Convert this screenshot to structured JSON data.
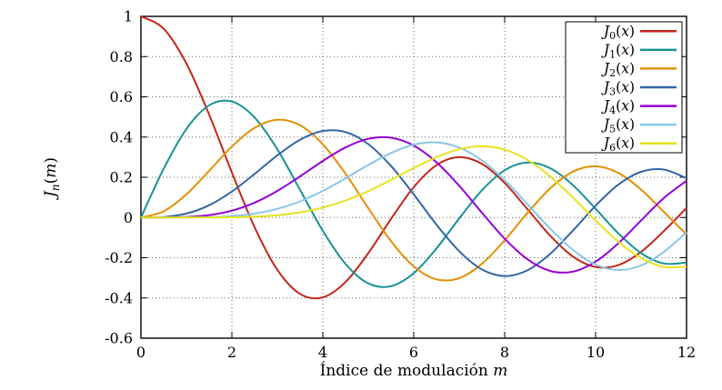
{
  "figure": {
    "background": "#ffffff",
    "grid_color": "#666666",
    "axis_color": "#000000"
  },
  "chart_data": {
    "type": "line",
    "title": "",
    "xlabel_text": "Índice de modulación",
    "xlabel_var": "m",
    "ylabel_func": "J",
    "ylabel_sub": "n",
    "ylabel_arg_open": "(",
    "ylabel_arg_var": "m",
    "ylabel_arg_close": ")",
    "xlim": [
      0,
      12
    ],
    "ylim": [
      -0.6,
      1.0
    ],
    "xticks": [
      0,
      2,
      4,
      6,
      8,
      10,
      12
    ],
    "xtick_labels": [
      "0",
      "2",
      "4",
      "6",
      "8",
      "10",
      "12"
    ],
    "yticks": [
      1,
      0.8,
      0.6,
      0.4,
      0.2,
      0,
      -0.2,
      -0.4,
      -0.6
    ],
    "ytick_labels": [
      "1",
      "0.8",
      "0.6",
      "0.4",
      "0.2",
      "0",
      "-0.2",
      "-0.4",
      "-0.6"
    ],
    "grid": true,
    "legend_position": "top-right",
    "legend_func": "J",
    "legend_arg_open": "(",
    "legend_arg_var": "x",
    "legend_arg_close": ")",
    "x": [
      0,
      0.5,
      1,
      1.5,
      2,
      2.5,
      3,
      3.5,
      4,
      4.5,
      5,
      5.5,
      6,
      6.5,
      7,
      7.5,
      8,
      8.5,
      9,
      9.5,
      10,
      10.5,
      11,
      11.5,
      12
    ],
    "series": [
      {
        "n": "0",
        "label": "J_0(x)",
        "color": "#c4251b",
        "values": [
          1.0,
          0.9385,
          0.7652,
          0.5118,
          0.2239,
          -0.0484,
          -0.2601,
          -0.3801,
          -0.3971,
          -0.3205,
          -0.1776,
          -0.0068,
          0.1506,
          0.2601,
          0.3001,
          0.2663,
          0.1717,
          0.0419,
          -0.0903,
          -0.1939,
          -0.2459,
          -0.2366,
          -0.1712,
          -0.0677,
          0.0477
        ]
      },
      {
        "n": "1",
        "label": "J_1(x)",
        "color": "#189294",
        "values": [
          0.0,
          0.2423,
          0.4401,
          0.5579,
          0.5767,
          0.4971,
          0.3391,
          0.1374,
          -0.066,
          -0.2311,
          -0.3276,
          -0.3414,
          -0.2767,
          -0.1538,
          -0.0047,
          0.1352,
          0.2346,
          0.2731,
          0.2453,
          0.1613,
          0.0435,
          -0.0788,
          -0.1768,
          -0.2285,
          -0.2234
        ]
      },
      {
        "n": "2",
        "label": "J_2(x)",
        "color": "#e39000",
        "values": [
          0.0,
          0.0306,
          0.1149,
          0.2321,
          0.3528,
          0.4461,
          0.4861,
          0.4586,
          0.3641,
          0.2178,
          0.0466,
          -0.1173,
          -0.2429,
          -0.3074,
          -0.3014,
          -0.2303,
          -0.113,
          0.0223,
          0.1448,
          0.2279,
          0.2546,
          0.2216,
          0.139,
          0.0279,
          -0.0849
        ]
      },
      {
        "n": "3",
        "label": "J_3(x)",
        "color": "#3465a4",
        "values": [
          0.0,
          0.0026,
          0.0196,
          0.061,
          0.1289,
          0.2166,
          0.3091,
          0.3868,
          0.4302,
          0.4247,
          0.3648,
          0.2561,
          0.1148,
          -0.0353,
          -0.1676,
          -0.2581,
          -0.2911,
          -0.2626,
          -0.1809,
          -0.0653,
          0.0584,
          0.1633,
          0.2273,
          0.2382,
          0.1951
        ]
      },
      {
        "n": "4",
        "label": "J_4(x)",
        "color": "#9400d3",
        "values": [
          0.0,
          0.0002,
          0.0025,
          0.0118,
          0.034,
          0.0738,
          0.132,
          0.2044,
          0.2811,
          0.3484,
          0.3912,
          0.3967,
          0.3576,
          0.2748,
          0.1578,
          0.0238,
          -0.1054,
          -0.2077,
          -0.2655,
          -0.2691,
          -0.2196,
          -0.1283,
          -0.015,
          0.0964,
          0.1825
        ]
      },
      {
        "n": "5",
        "label": "J_5(x)",
        "color": "#8ac6e8",
        "values": [
          0.0,
          0.0,
          0.0002,
          0.0018,
          0.007,
          0.0195,
          0.043,
          0.0804,
          0.1321,
          0.1947,
          0.2611,
          0.3209,
          0.3621,
          0.3736,
          0.3479,
          0.2835,
          0.1858,
          0.0671,
          -0.055,
          -0.1613,
          -0.2341,
          -0.2611,
          -0.2383,
          -0.1712,
          -0.0735
        ]
      },
      {
        "n": "6",
        "label": "J_6(x)",
        "color": "#e6e31c",
        "values": [
          0.0,
          0.0,
          0.0,
          0.0002,
          0.0012,
          0.0042,
          0.0114,
          0.0254,
          0.0491,
          0.0843,
          0.131,
          0.1868,
          0.2458,
          0.2999,
          0.3392,
          0.3541,
          0.3376,
          0.2867,
          0.2043,
          0.0993,
          -0.0145,
          -0.1203,
          -0.2016,
          -0.2452,
          -0.2437
        ]
      }
    ]
  }
}
